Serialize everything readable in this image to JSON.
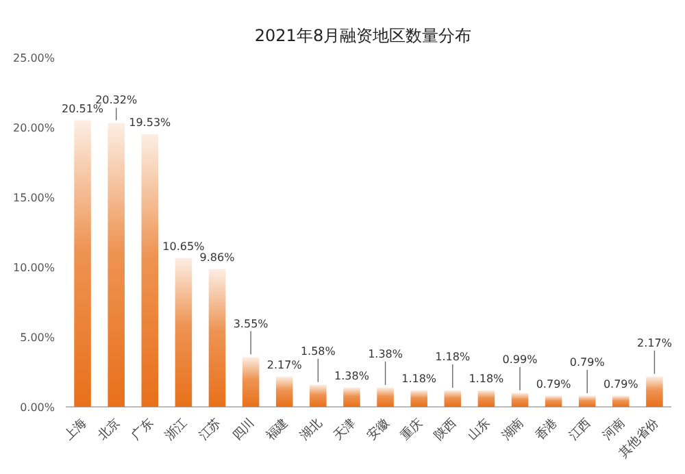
{
  "chart_data": {
    "type": "bar",
    "title": "2021年8月融资地区数量分布",
    "categories": [
      "上海",
      "北京",
      "广东",
      "浙江",
      "江苏",
      "四川",
      "福建",
      "湖北",
      "天津",
      "安徽",
      "重庆",
      "陕西",
      "山东",
      "湖南",
      "香港",
      "江西",
      "河南",
      "其他省份"
    ],
    "values": [
      20.51,
      20.32,
      19.53,
      10.65,
      9.86,
      3.55,
      2.17,
      1.58,
      1.38,
      1.38,
      1.18,
      1.18,
      1.18,
      0.99,
      0.79,
      0.79,
      0.79,
      2.17
    ],
    "value_labels": [
      "20.51%",
      "20.32%",
      "19.53%",
      "10.65%",
      "9.86%",
      "3.55%",
      "2.17%",
      "1.58%",
      "1.38%",
      "1.38%",
      "1.18%",
      "1.18%",
      "1.18%",
      "0.99%",
      "0.79%",
      "0.79%",
      "0.79%",
      "2.17%"
    ],
    "color": "#e8701a",
    "ylim": [
      0,
      25
    ],
    "yticks": [
      {
        "value": 0,
        "label": "0.00%"
      },
      {
        "value": 5,
        "label": "5.00%"
      },
      {
        "value": 10,
        "label": "10.00%"
      },
      {
        "value": 15,
        "label": "15.00%"
      },
      {
        "value": 20,
        "label": "20.00%"
      },
      {
        "value": 25,
        "label": "25.00%"
      }
    ]
  }
}
